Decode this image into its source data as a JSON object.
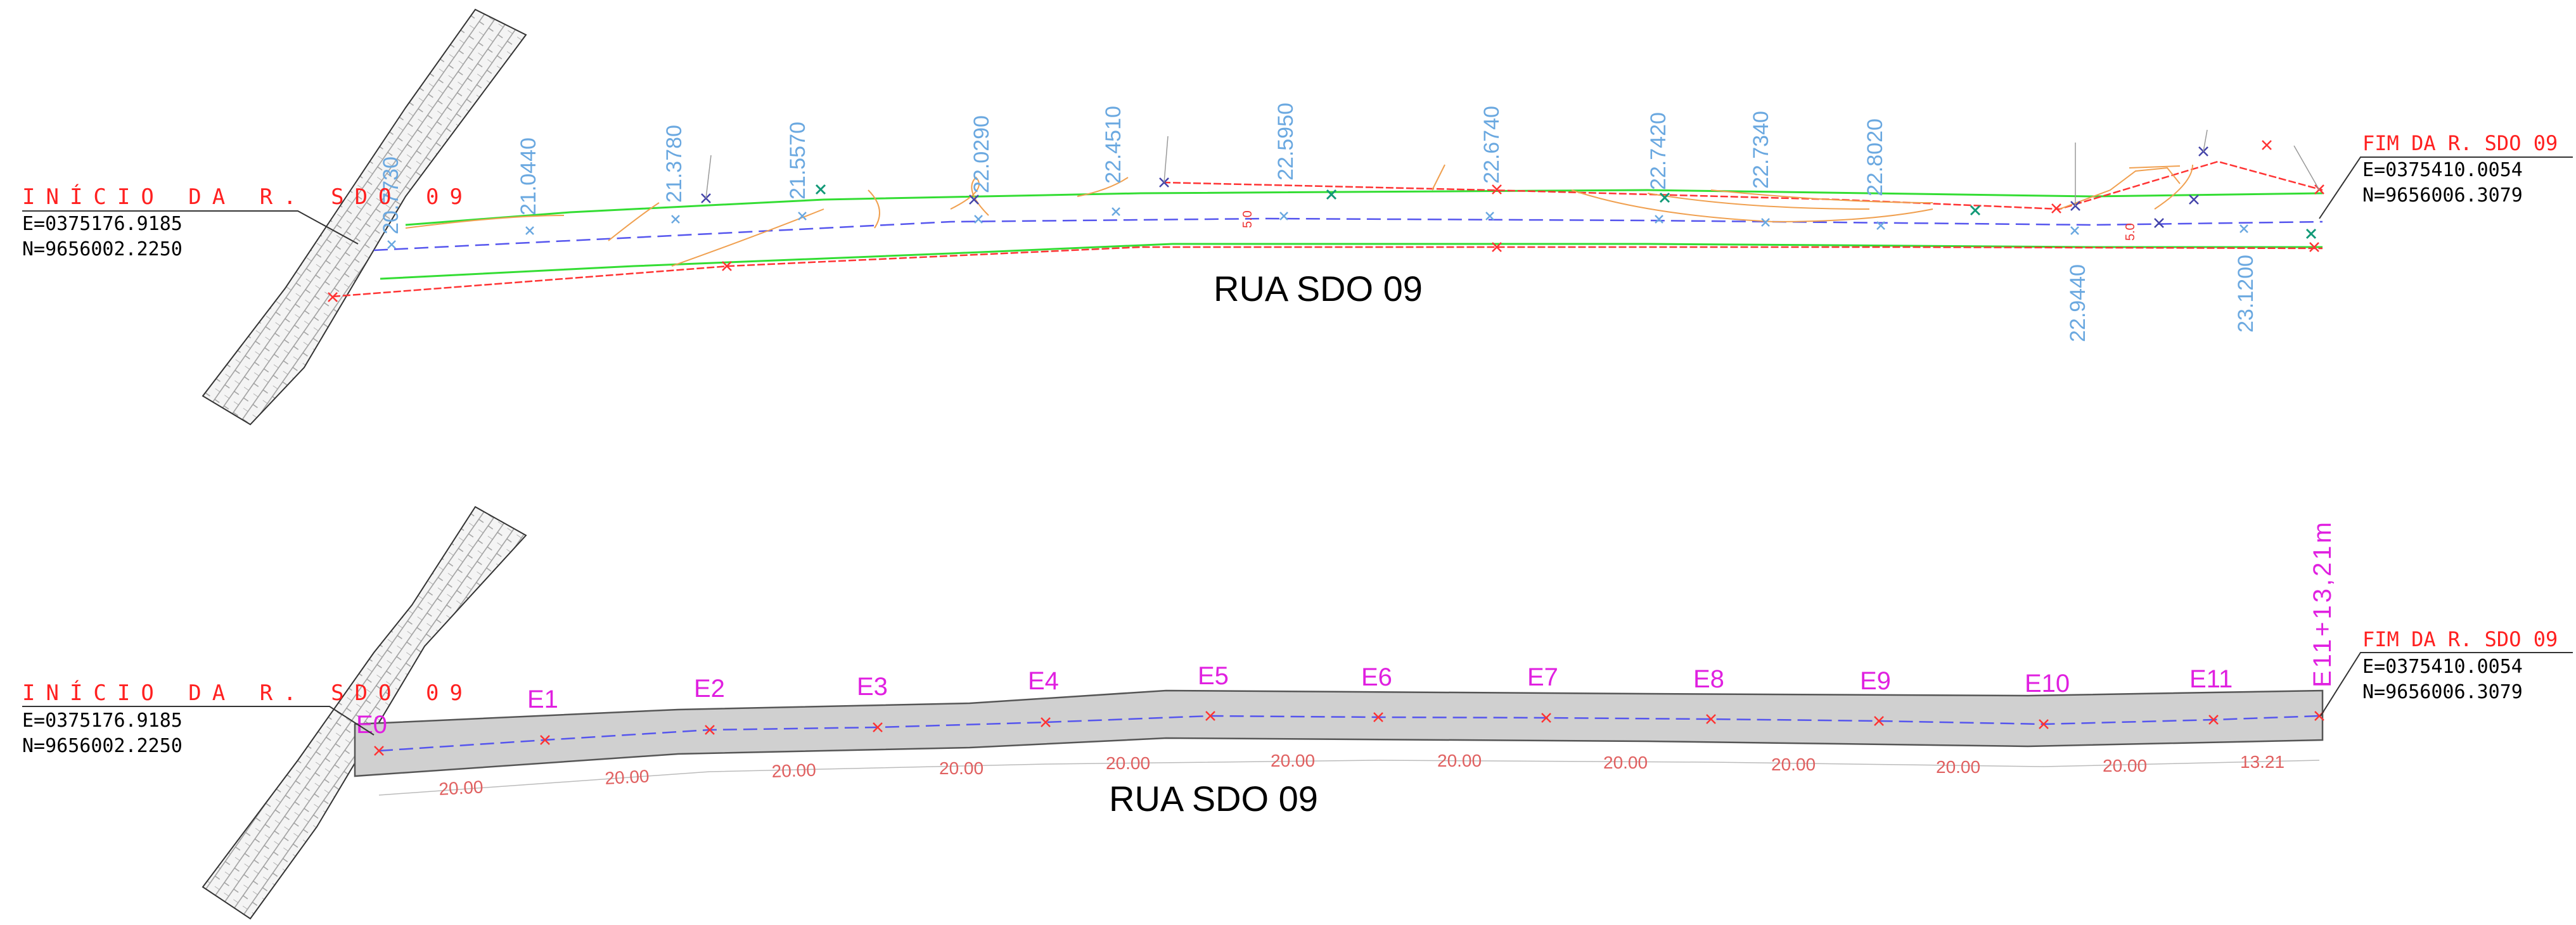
{
  "colors": {
    "start_label": "#ff2020",
    "coord_text": "#000000",
    "elevation": "#6aa8e0",
    "station": "#e020e0",
    "distance": "#e06060",
    "boundary": "#33dd33",
    "contour": "#f0a050",
    "road_edge": "#ff3333",
    "centerline": "#5555ee",
    "road_fill": "#d0d0d0"
  },
  "top": {
    "start": {
      "label": "INÍCIO DA R. SDO 09",
      "e": "E=0375176.9185",
      "n": "N=9656002.2250"
    },
    "end": {
      "label": "FIM DA R. SDO 09",
      "e": "E=0375410.0054",
      "n": "N=9656006.3079"
    },
    "street_name": "RUA SDO 09",
    "elevations": [
      "20.7730",
      "21.0440",
      "21.3780",
      "21.5570",
      "22.0290",
      "22.4510",
      "22.5950",
      "22.6740",
      "22.7420",
      "22.7340",
      "22.8020",
      "22.9440",
      "23.1200"
    ],
    "small_marks": [
      "5.0",
      "5.0"
    ]
  },
  "bottom": {
    "start": {
      "label": "INÍCIO DA R. SDO 09",
      "e": "E=0375176.9185",
      "n": "N=9656002.2250"
    },
    "end": {
      "label": "FIM DA R. SDO 09",
      "e": "E=0375410.0054",
      "n": "N=9656006.3079"
    },
    "street_name": "RUA SDO 09",
    "stations": [
      "E0",
      "E1",
      "E2",
      "E3",
      "E4",
      "E5",
      "E6",
      "E7",
      "E8",
      "E9",
      "E10",
      "E11"
    ],
    "final_station": "E11+13,21m",
    "distances": [
      "20.00",
      "20.00",
      "20.00",
      "20.00",
      "20.00",
      "20.00",
      "20.00",
      "20.00",
      "20.00",
      "20.00",
      "20.00",
      "13.21"
    ]
  }
}
